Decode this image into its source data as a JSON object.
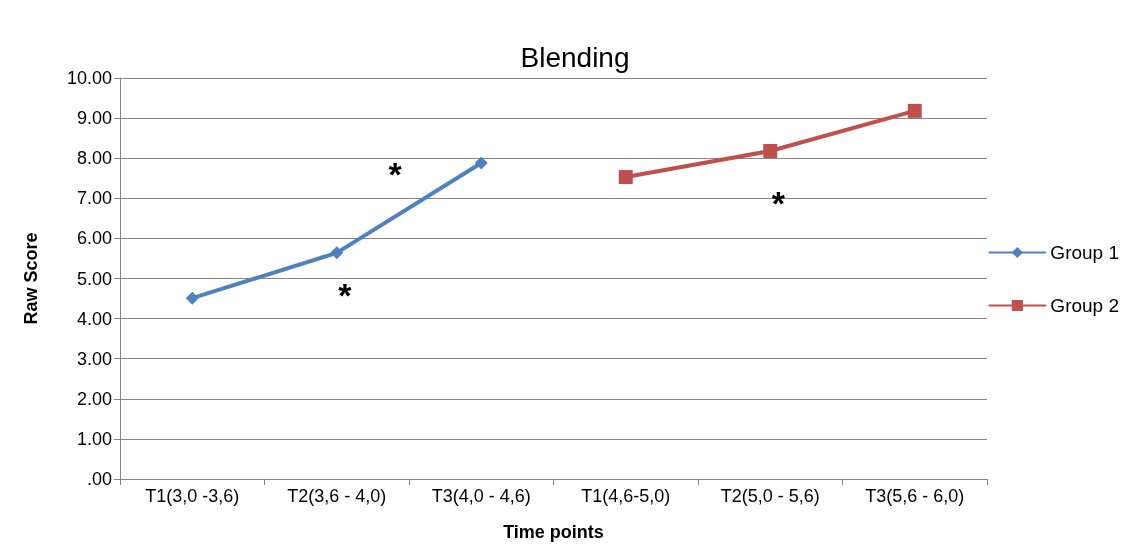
{
  "chart_data": {
    "type": "line",
    "title": "Blending",
    "xlabel": "Time points",
    "ylabel": "Raw Score",
    "categories": [
      "T1(3,0 -3,6)",
      "T2(3,6 - 4,0)",
      "T3(4,0 - 4,6)",
      "T1(4,6-5,0)",
      "T2(5,0 - 5,6)",
      "T3(5,6 - 6,0)"
    ],
    "series": [
      {
        "name": "Group 1",
        "color": "#4f81bd",
        "marker": "diamond",
        "values": [
          4.51,
          5.64,
          7.88,
          null,
          null,
          null
        ]
      },
      {
        "name": "Group 2",
        "color": "#c0504d",
        "marker": "square",
        "values": [
          null,
          null,
          null,
          7.53,
          8.18,
          9.18
        ]
      }
    ],
    "ylim": [
      0,
      10
    ],
    "yticks": [
      {
        "value": 0,
        "label": ".00"
      },
      {
        "value": 1,
        "label": "1.00"
      },
      {
        "value": 2,
        "label": "2.00"
      },
      {
        "value": 3,
        "label": "3.00"
      },
      {
        "value": 4,
        "label": "4.00"
      },
      {
        "value": 5,
        "label": "5.00"
      },
      {
        "value": 6,
        "label": "6.00"
      },
      {
        "value": 7,
        "label": "7.00"
      },
      {
        "value": 8,
        "label": "8.00"
      },
      {
        "value": 9,
        "label": "9.00"
      },
      {
        "value": 10,
        "label": "10.00"
      }
    ],
    "annotations": [
      "*",
      "*",
      "*"
    ],
    "grid": "y",
    "legend": "right",
    "line_style": "solid"
  }
}
